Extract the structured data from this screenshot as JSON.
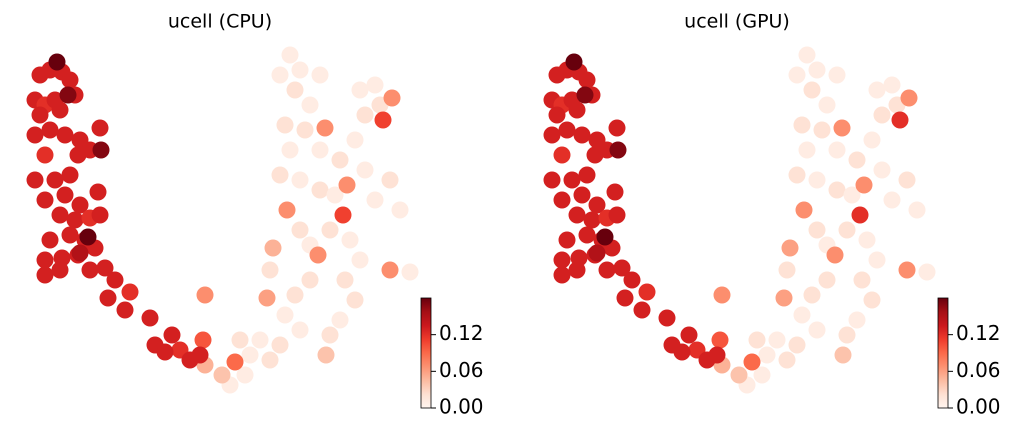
{
  "chart_data": [
    {
      "type": "scatter",
      "title": "ucell (CPU)",
      "colormap": "Reds",
      "xlim": [
        0,
        430
      ],
      "ylim": [
        0,
        400
      ],
      "clim": [
        0,
        0.18
      ],
      "cticks": [
        {
          "value": 0,
          "label": "0.00"
        },
        {
          "value": 0.06,
          "label": "0.06"
        },
        {
          "value": 0.12,
          "label": "0.12"
        }
      ],
      "x": [
        290,
        280,
        295,
        310,
        305,
        320,
        340,
        355,
        365,
        375,
        380,
        360,
        290,
        280,
        300,
        320,
        335,
        300,
        310,
        330,
        350,
        360,
        345,
        355,
        340,
        330,
        300,
        280,
        260,
        250,
        270,
        240,
        230,
        245,
        295,
        285,
        310,
        375,
        400,
        390,
        365,
        410,
        270,
        285,
        300,
        320,
        205,
        203,
        235,
        205,
        267,
        273,
        318,
        287,
        347,
        343,
        325,
        383,
        392,
        390,
        326,
        222,
        40,
        50,
        62,
        70,
        35,
        45,
        55,
        40,
        60,
        75,
        50,
        35,
        65,
        80,
        45,
        78,
        90,
        100,
        35,
        55,
        70,
        45,
        65,
        80,
        98,
        60,
        75,
        90,
        100,
        50,
        70,
        85,
        45,
        62,
        78,
        95,
        60,
        45,
        90,
        105,
        115,
        108,
        130,
        125,
        150,
        172,
        155,
        180,
        200,
        165,
        190,
        57,
        68,
        101,
        88,
        80
      ],
      "y": [
        365,
        345,
        330,
        315,
        290,
        270,
        260,
        280,
        305,
        335,
        315,
        330,
        270,
        245,
        240,
        230,
        225,
        190,
        175,
        190,
        180,
        160,
        140,
        120,
        100,
        85,
        90,
        75,
        80,
        65,
        60,
        80,
        35,
        45,
        125,
        105,
        140,
        220,
        210,
        240,
        250,
        148,
        150,
        295,
        350,
        345,
        125,
        80,
        58,
        55,
        122,
        172,
        165,
        210,
        235,
        205,
        292,
        300,
        322,
        150,
        65,
        45,
        345,
        350,
        348,
        340,
        320,
        315,
        320,
        305,
        310,
        325,
        290,
        285,
        285,
        280,
        265,
        265,
        270,
        292,
        240,
        240,
        245,
        220,
        225,
        215,
        228,
        205,
        200,
        202,
        205,
        180,
        185,
        180,
        160,
        162,
        165,
        172,
        150,
        145,
        150,
        152,
        140,
        122,
        128,
        110,
        102,
        85,
        75,
        70,
        65,
        68,
        60,
        358,
        325,
        270,
        183,
        167
      ],
      "values": [
        0.01,
        0.01,
        0.02,
        0.01,
        0.02,
        0.01,
        0.02,
        0.01,
        0.02,
        0.01,
        0.02,
        0.01,
        0.01,
        0.02,
        0.01,
        0.02,
        0.01,
        0.02,
        0.01,
        0.02,
        0.01,
        0.01,
        0.02,
        0.02,
        0.01,
        0.02,
        0.01,
        0.02,
        0.01,
        0.01,
        0.02,
        0.02,
        0.01,
        0.01,
        0.02,
        0.01,
        0.02,
        0.01,
        0.01,
        0.02,
        0.01,
        0.01,
        0.02,
        0.02,
        0.01,
        0.01,
        0.07,
        0.1,
        0.09,
        0.05,
        0.06,
        0.05,
        0.07,
        0.07,
        0.07,
        0.11,
        0.07,
        0.11,
        0.07,
        0.07,
        0.04,
        0.04,
        0.13,
        0.13,
        0.13,
        0.13,
        0.13,
        0.12,
        0.13,
        0.13,
        0.13,
        0.13,
        0.13,
        0.13,
        0.13,
        0.13,
        0.12,
        0.13,
        0.13,
        0.13,
        0.13,
        0.13,
        0.13,
        0.13,
        0.13,
        0.13,
        0.13,
        0.13,
        0.13,
        0.12,
        0.13,
        0.13,
        0.13,
        0.13,
        0.13,
        0.13,
        0.13,
        0.13,
        0.13,
        0.13,
        0.13,
        0.13,
        0.13,
        0.13,
        0.12,
        0.13,
        0.13,
        0.13,
        0.13,
        0.12,
        0.13,
        0.13,
        0.13,
        0.18,
        0.17,
        0.17,
        0.18,
        0.15
      ]
    },
    {
      "type": "scatter",
      "title": "ucell (GPU)",
      "colormap": "Reds",
      "xlim": [
        0,
        430
      ],
      "ylim": [
        0,
        400
      ],
      "clim": [
        0,
        0.18
      ],
      "cticks": [
        {
          "value": 0,
          "label": "0.00"
        },
        {
          "value": 0.06,
          "label": "0.06"
        },
        {
          "value": 0.12,
          "label": "0.12"
        }
      ],
      "x": [
        290,
        280,
        295,
        310,
        305,
        320,
        340,
        355,
        365,
        375,
        380,
        360,
        290,
        280,
        300,
        320,
        335,
        300,
        310,
        330,
        350,
        360,
        345,
        355,
        340,
        330,
        300,
        280,
        260,
        250,
        270,
        240,
        230,
        245,
        295,
        285,
        310,
        375,
        400,
        390,
        365,
        410,
        270,
        285,
        300,
        320,
        205,
        203,
        235,
        205,
        267,
        273,
        318,
        287,
        347,
        343,
        325,
        383,
        392,
        390,
        326,
        222,
        40,
        50,
        62,
        70,
        35,
        45,
        55,
        40,
        60,
        75,
        50,
        35,
        65,
        80,
        45,
        78,
        90,
        100,
        35,
        55,
        70,
        45,
        65,
        80,
        98,
        60,
        75,
        90,
        100,
        50,
        70,
        85,
        45,
        62,
        78,
        95,
        60,
        45,
        90,
        105,
        115,
        108,
        130,
        125,
        150,
        172,
        155,
        180,
        200,
        165,
        190,
        57,
        68,
        101,
        88,
        80
      ],
      "y": [
        365,
        345,
        330,
        315,
        290,
        270,
        260,
        280,
        305,
        335,
        315,
        330,
        270,
        245,
        240,
        230,
        225,
        190,
        175,
        190,
        180,
        160,
        140,
        120,
        100,
        85,
        90,
        75,
        80,
        65,
        60,
        80,
        35,
        45,
        125,
        105,
        140,
        220,
        210,
        240,
        250,
        148,
        150,
        295,
        350,
        345,
        125,
        80,
        58,
        55,
        122,
        172,
        165,
        210,
        235,
        205,
        292,
        300,
        322,
        150,
        65,
        45,
        345,
        350,
        348,
        340,
        320,
        315,
        320,
        305,
        310,
        325,
        290,
        285,
        285,
        280,
        265,
        265,
        270,
        292,
        240,
        240,
        245,
        220,
        225,
        215,
        228,
        205,
        200,
        202,
        205,
        180,
        185,
        180,
        160,
        162,
        165,
        172,
        150,
        145,
        150,
        152,
        140,
        122,
        128,
        110,
        102,
        85,
        75,
        70,
        65,
        68,
        60,
        358,
        325,
        270,
        183,
        167
      ],
      "values": [
        0.01,
        0.01,
        0.02,
        0.01,
        0.02,
        0.01,
        0.02,
        0.01,
        0.02,
        0.01,
        0.02,
        0.01,
        0.01,
        0.02,
        0.01,
        0.02,
        0.01,
        0.02,
        0.01,
        0.02,
        0.01,
        0.01,
        0.02,
        0.02,
        0.01,
        0.02,
        0.01,
        0.02,
        0.01,
        0.01,
        0.02,
        0.02,
        0.01,
        0.01,
        0.02,
        0.01,
        0.02,
        0.01,
        0.01,
        0.02,
        0.01,
        0.01,
        0.02,
        0.02,
        0.01,
        0.01,
        0.07,
        0.1,
        0.09,
        0.05,
        0.06,
        0.06,
        0.07,
        0.07,
        0.07,
        0.12,
        0.07,
        0.12,
        0.07,
        0.07,
        0.04,
        0.04,
        0.13,
        0.13,
        0.13,
        0.13,
        0.13,
        0.12,
        0.13,
        0.13,
        0.13,
        0.13,
        0.13,
        0.13,
        0.13,
        0.13,
        0.12,
        0.13,
        0.13,
        0.13,
        0.13,
        0.13,
        0.13,
        0.13,
        0.13,
        0.13,
        0.13,
        0.13,
        0.13,
        0.12,
        0.13,
        0.13,
        0.13,
        0.13,
        0.13,
        0.13,
        0.13,
        0.13,
        0.13,
        0.13,
        0.13,
        0.13,
        0.13,
        0.13,
        0.12,
        0.13,
        0.13,
        0.13,
        0.13,
        0.12,
        0.13,
        0.13,
        0.13,
        0.18,
        0.17,
        0.17,
        0.18,
        0.15
      ]
    }
  ]
}
